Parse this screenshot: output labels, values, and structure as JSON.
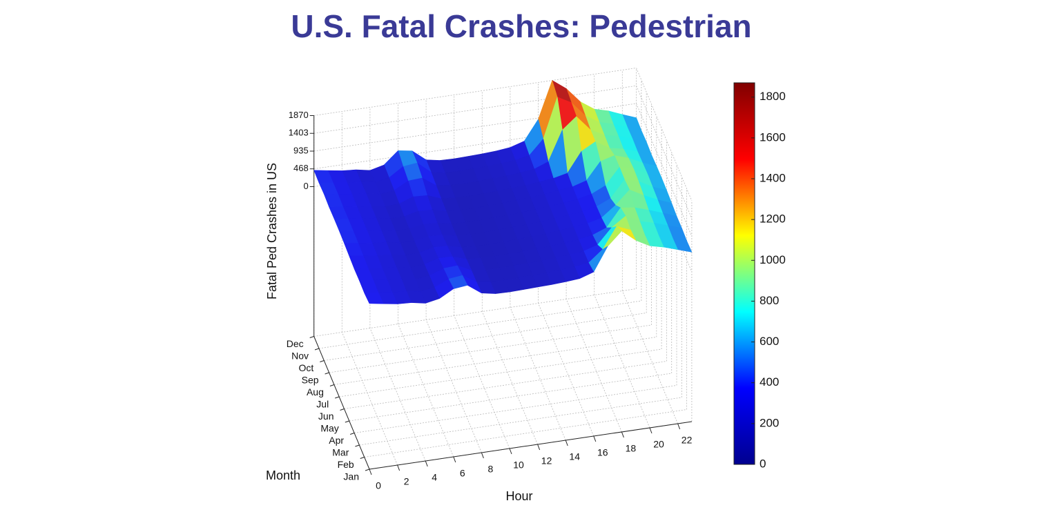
{
  "chart_data": {
    "type": "surface",
    "title": "U.S. Fatal Crashes: Pedestrian",
    "xlabel": "Hour",
    "ylabel": "Month",
    "zlabel": "Fatal Ped Crashes in US",
    "x": [
      0,
      1,
      2,
      3,
      4,
      5,
      6,
      7,
      8,
      9,
      10,
      11,
      12,
      13,
      14,
      15,
      16,
      17,
      18,
      19,
      20,
      21,
      22,
      23
    ],
    "xlim": [
      0,
      23
    ],
    "xticks": [
      0,
      2,
      4,
      6,
      8,
      10,
      12,
      14,
      16,
      18,
      20,
      22
    ],
    "y": [
      "Jan",
      "Feb",
      "Mar",
      "Apr",
      "May",
      "Jun",
      "Jul",
      "Aug",
      "Sep",
      "Oct",
      "Nov",
      "Dec"
    ],
    "zlim": [
      0,
      1870
    ],
    "zticks": [
      0,
      468,
      935,
      1403,
      1870
    ],
    "clim": [
      0,
      1870
    ],
    "cticks": [
      0,
      200,
      400,
      600,
      800,
      1000,
      1200,
      1400,
      1600,
      1800
    ],
    "colormap": [
      "#00008f",
      "#0000ff",
      "#00ffff",
      "#ffff00",
      "#ff0000",
      "#800000"
    ],
    "z": [
      [
        420,
        360,
        300,
        280,
        210,
        280,
        480,
        520,
        260,
        190,
        180,
        190,
        200,
        210,
        230,
        260,
        380,
        1000,
        1350,
        1050,
        850,
        760,
        640,
        520
      ],
      [
        380,
        330,
        280,
        260,
        200,
        250,
        420,
        460,
        230,
        180,
        170,
        180,
        190,
        200,
        220,
        250,
        300,
        600,
        1150,
        1000,
        820,
        740,
        620,
        500
      ],
      [
        390,
        340,
        290,
        270,
        200,
        240,
        380,
        400,
        220,
        170,
        170,
        180,
        190,
        200,
        220,
        250,
        290,
        400,
        800,
        1050,
        860,
        760,
        640,
        520
      ],
      [
        380,
        330,
        280,
        260,
        190,
        220,
        330,
        320,
        200,
        170,
        160,
        170,
        180,
        190,
        210,
        240,
        280,
        340,
        480,
        950,
        900,
        780,
        650,
        510
      ],
      [
        400,
        350,
        300,
        270,
        200,
        210,
        300,
        280,
        190,
        160,
        160,
        170,
        180,
        200,
        220,
        250,
        290,
        330,
        420,
        700,
        1050,
        850,
        680,
        540
      ],
      [
        420,
        360,
        310,
        280,
        200,
        200,
        270,
        250,
        180,
        160,
        160,
        170,
        180,
        200,
        220,
        250,
        290,
        320,
        400,
        560,
        1000,
        900,
        700,
        560
      ],
      [
        430,
        370,
        310,
        280,
        210,
        200,
        270,
        250,
        180,
        160,
        160,
        170,
        180,
        200,
        220,
        250,
        290,
        330,
        410,
        580,
        1010,
        920,
        720,
        570
      ],
      [
        430,
        370,
        310,
        280,
        210,
        210,
        300,
        280,
        190,
        160,
        160,
        170,
        180,
        200,
        220,
        250,
        300,
        340,
        450,
        900,
        1000,
        880,
        700,
        560
      ],
      [
        420,
        360,
        310,
        280,
        210,
        230,
        360,
        340,
        200,
        170,
        160,
        170,
        180,
        200,
        220,
        260,
        300,
        380,
        900,
        1100,
        880,
        800,
        680,
        540
      ],
      [
        440,
        380,
        320,
        290,
        220,
        260,
        460,
        480,
        230,
        180,
        170,
        180,
        200,
        210,
        240,
        280,
        420,
        1200,
        1500,
        1100,
        900,
        820,
        700,
        560
      ],
      [
        420,
        370,
        310,
        280,
        210,
        280,
        520,
        560,
        260,
        190,
        180,
        190,
        200,
        220,
        250,
        320,
        700,
        1750,
        1550,
        1150,
        920,
        820,
        680,
        540
      ],
      [
        430,
        370,
        310,
        280,
        210,
        300,
        620,
        560,
        270,
        200,
        190,
        200,
        210,
        230,
        270,
        380,
        900,
        1870,
        1600,
        1200,
        950,
        850,
        700,
        560
      ]
    ]
  }
}
